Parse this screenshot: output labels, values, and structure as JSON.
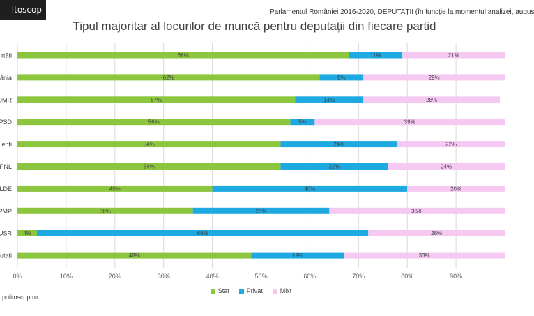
{
  "header": {
    "logo_text": "ltoscop",
    "subtitle": "Parlamentul României 2016-2020, DEPUTAȚII (în funcție la momentul analizei, augus",
    "source": "politoscop.ro"
  },
  "colors": {
    "stat": "#8cc63f",
    "privat": "#1ea9e1",
    "mixt": "#f6c9f3"
  },
  "chart_data": {
    "type": "bar",
    "orientation": "horizontal",
    "stacked": true,
    "title": "Tipul majoritar al locurilor de muncă pentru deputații din fiecare partid",
    "categories": [
      "rtăți",
      "ânia",
      "DMR",
      "PSD",
      "enți",
      "PNL",
      "LDE",
      "PMP",
      "USR",
      "putați"
    ],
    "series": [
      {
        "name": "Stat",
        "values": [
          68,
          62,
          57,
          56,
          54,
          54,
          40,
          36,
          4,
          48
        ]
      },
      {
        "name": "Privat",
        "values": [
          11,
          9,
          14,
          5,
          24,
          22,
          40,
          28,
          68,
          19
        ]
      },
      {
        "name": "Mixt",
        "values": [
          21,
          29,
          28,
          39,
          22,
          24,
          20,
          36,
          28,
          33
        ]
      }
    ],
    "data_labels": [
      [
        "68%",
        "11%",
        "21%"
      ],
      [
        "62%",
        "9%",
        "29%"
      ],
      [
        "57%",
        "14%",
        "28%"
      ],
      [
        "56%",
        "5%",
        "39%"
      ],
      [
        "54%",
        "24%",
        "22%"
      ],
      [
        "54%",
        "22%",
        "24%"
      ],
      [
        "40%",
        "40%",
        "20%"
      ],
      [
        "36%",
        "28%",
        "36%"
      ],
      [
        "4%",
        "68%",
        "28%"
      ],
      [
        "48%",
        "19%",
        "33%"
      ]
    ],
    "x_ticks": [
      "0%",
      "10%",
      "20%",
      "30%",
      "40%",
      "50%",
      "60%",
      "70%",
      "80%",
      "90%"
    ],
    "xlim": [
      0,
      100
    ],
    "grid": true,
    "legend_position": "bottom"
  }
}
